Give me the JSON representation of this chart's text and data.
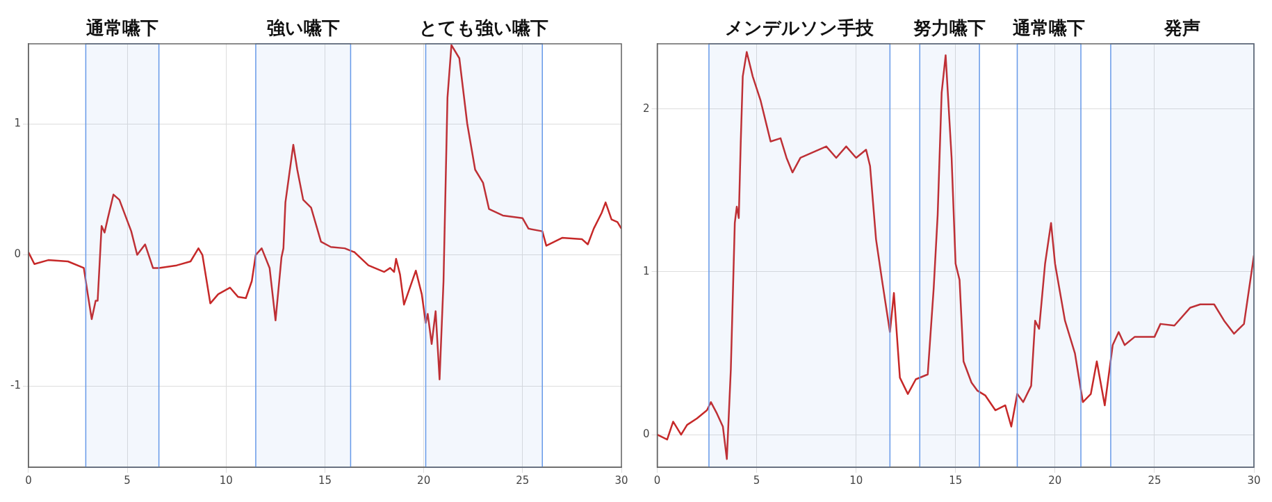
{
  "chart_data": [
    {
      "type": "line",
      "xlim": [
        0,
        30
      ],
      "xticks": [
        0,
        5,
        10,
        15,
        20,
        25,
        30
      ],
      "ylim": [
        -1.62,
        1.61
      ],
      "yticks": [
        -1,
        0,
        1
      ],
      "grid": true,
      "legend": false,
      "marker": "none",
      "line_style": "solid",
      "series": [
        {
          "color": "#c62828",
          "x": [
            0,
            0.3,
            1,
            2,
            2.8,
            3,
            3.2,
            3.4,
            3.5,
            3.7,
            3.85,
            4,
            4.3,
            4.6,
            5.2,
            5.5,
            5.9,
            6.3,
            6.6,
            7.5,
            8.2,
            8.6,
            8.8,
            9.2,
            9.6,
            10.2,
            10.6,
            11,
            11.3,
            11.5,
            11.8,
            12.2,
            12.5,
            12.8,
            12.9,
            13,
            13.4,
            13.6,
            13.9,
            14.3,
            14.8,
            15.3,
            16,
            16.5,
            17.2,
            18,
            18.3,
            18.5,
            18.6,
            18.8,
            19,
            19.3,
            19.6,
            19.9,
            20.1,
            20.2,
            20.4,
            20.6,
            20.8,
            21,
            21.2,
            21.4,
            21.8,
            22.2,
            22.6,
            23,
            23.3,
            24,
            25,
            25.3,
            26,
            26.2,
            27,
            28,
            28.3,
            28.6,
            29,
            29.2,
            29.5,
            29.8,
            30
          ],
          "values": [
            0.02,
            -0.07,
            -0.04,
            -0.05,
            -0.1,
            -0.3,
            -0.49,
            -0.35,
            -0.35,
            0.22,
            0.17,
            0.27,
            0.46,
            0.42,
            0.18,
            0,
            0.08,
            -0.1,
            -0.1,
            -0.08,
            -0.05,
            0.05,
            0,
            -0.37,
            -0.3,
            -0.25,
            -0.32,
            -0.33,
            -0.2,
            0,
            0.05,
            -0.1,
            -0.5,
            -0.02,
            0.05,
            0.4,
            0.84,
            0.65,
            0.42,
            0.36,
            0.1,
            0.06,
            0.05,
            0.02,
            -0.08,
            -0.13,
            -0.1,
            -0.13,
            -0.03,
            -0.15,
            -0.38,
            -0.25,
            -0.12,
            -0.3,
            -0.52,
            -0.45,
            -0.68,
            -0.43,
            -0.95,
            -0.2,
            1.2,
            1.6,
            1.5,
            1,
            0.65,
            0.55,
            0.35,
            0.3,
            0.28,
            0.2,
            0.18,
            0.07,
            0.13,
            0.12,
            0.08,
            0.2,
            0.32,
            0.4,
            0.27,
            0.25,
            0.2
          ]
        }
      ],
      "bands": [
        {
          "axis": "x",
          "from": 2.9,
          "to": 6.6,
          "label": "通常嚥下",
          "color": "#6699e8"
        },
        {
          "axis": "x",
          "from": 11.5,
          "to": 16.3,
          "label": "強い嚥下",
          "color": "#6699e8"
        },
        {
          "axis": "x",
          "from": 20.1,
          "to": 26,
          "label": "とても強い嚥下",
          "color": "#6699e8"
        }
      ]
    },
    {
      "type": "line",
      "xlim": [
        0,
        30
      ],
      "xticks": [
        0,
        5,
        10,
        15,
        20,
        25,
        30
      ],
      "ylim": [
        -0.2,
        2.4
      ],
      "yticks": [
        0,
        1,
        2
      ],
      "grid": true,
      "legend": false,
      "marker": "none",
      "line_style": "solid",
      "series": [
        {
          "color": "#c62828",
          "x": [
            0,
            0.5,
            0.8,
            1.2,
            1.5,
            2,
            2.5,
            2.7,
            3,
            3.3,
            3.5,
            3.7,
            3.9,
            4,
            4.1,
            4.2,
            4.3,
            4.5,
            4.8,
            5.2,
            5.5,
            5.7,
            6.2,
            6.5,
            6.8,
            7.2,
            8.5,
            9,
            9.5,
            10,
            10.5,
            10.7,
            11,
            11.3,
            11.7,
            11.9,
            12.2,
            12.6,
            13,
            13.6,
            13.9,
            14.1,
            14.3,
            14.5,
            14.8,
            15,
            15.2,
            15.4,
            15.8,
            16.1,
            16.5,
            17,
            17.5,
            17.8,
            18.1,
            18.4,
            18.8,
            19,
            19.2,
            19.5,
            19.8,
            20,
            20.5,
            21,
            21.4,
            21.8,
            22.1,
            22.5,
            22.9,
            23.2,
            23.5,
            24,
            25,
            25.3,
            26,
            26.8,
            27.3,
            28,
            28.5,
            29,
            29.5,
            30
          ],
          "values": [
            0,
            -0.03,
            0.08,
            0,
            0.06,
            0.1,
            0.15,
            0.2,
            0.13,
            0.05,
            -0.15,
            0.4,
            1.3,
            1.4,
            1.33,
            1.8,
            2.2,
            2.35,
            2.2,
            2.05,
            1.9,
            1.8,
            1.82,
            1.7,
            1.61,
            1.7,
            1.77,
            1.7,
            1.77,
            1.7,
            1.75,
            1.65,
            1.2,
            0.95,
            0.63,
            0.87,
            0.35,
            0.25,
            0.34,
            0.37,
            0.9,
            1.35,
            2.1,
            2.33,
            1.7,
            1.05,
            0.95,
            0.45,
            0.32,
            0.27,
            0.24,
            0.15,
            0.18,
            0.05,
            0.25,
            0.2,
            0.3,
            0.7,
            0.65,
            1.05,
            1.3,
            1.05,
            0.7,
            0.5,
            0.2,
            0.25,
            0.45,
            0.18,
            0.55,
            0.63,
            0.55,
            0.6,
            0.6,
            0.68,
            0.67,
            0.78,
            0.8,
            0.8,
            0.7,
            0.62,
            0.68,
            1.1
          ]
        }
      ],
      "bands": [
        {
          "axis": "x",
          "from": 2.6,
          "to": 11.7,
          "label": "メンデルソン手技",
          "color": "#6699e8"
        },
        {
          "axis": "x",
          "from": 13.2,
          "to": 16.2,
          "label": "努力嚥下",
          "color": "#6699e8"
        },
        {
          "axis": "x",
          "from": 18.1,
          "to": 21.3,
          "label": "通常嚥下",
          "color": "#6699e8"
        },
        {
          "axis": "x",
          "from": 22.8,
          "to": 30,
          "label": "発声",
          "color": "#6699e8"
        }
      ]
    }
  ]
}
